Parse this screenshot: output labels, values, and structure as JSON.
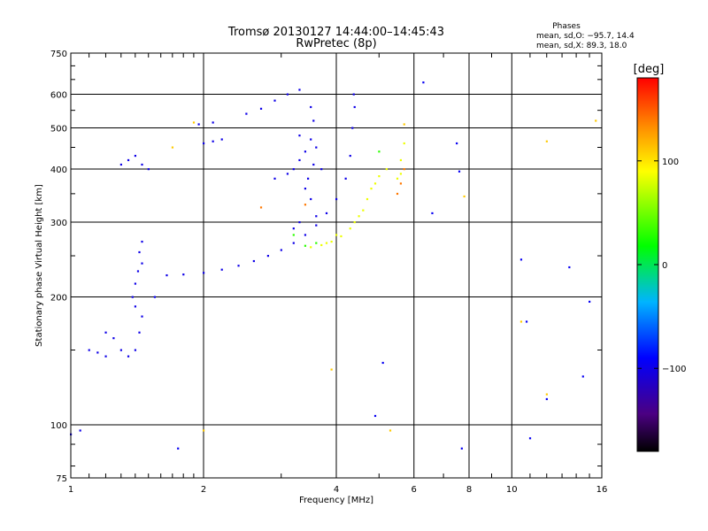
{
  "chart_data": {
    "type": "scatter",
    "title": "Tromsø 20130127 14:44:00–14:45:43",
    "subtitle": "RwPretec (8p)",
    "xlabel": "Frequency [MHz]",
    "ylabel": "Stationary phase Virtual Height [km]",
    "x_scale": "log",
    "y_scale": "log",
    "xlim": [
      1,
      16
    ],
    "ylim": [
      75,
      750
    ],
    "x_ticks": [
      1,
      2,
      4,
      6,
      8,
      10,
      16
    ],
    "x_tick_labels": [
      "1",
      "2",
      "4",
      "6",
      "8",
      "10",
      "16"
    ],
    "y_ticks": [
      75,
      100,
      200,
      300,
      400,
      500,
      600,
      750
    ],
    "y_tick_labels": [
      "75",
      "100",
      "200",
      "300",
      "400",
      "500",
      "600",
      "750"
    ],
    "grid": true,
    "stats": {
      "heading": "Phases",
      "line_o": "mean, sd,O: −95.7, 14.4",
      "line_x": "mean, sd,X:  89.3, 18.0"
    },
    "colorbar": {
      "label": "[deg]",
      "range": [
        -180,
        180
      ],
      "ticks": [
        100,
        0,
        -100
      ],
      "tick_labels": [
        "100",
        "0",
        "−100"
      ]
    },
    "traces": [
      {
        "name": "o-low",
        "phase": -100,
        "points": [
          [
            1.0,
            95
          ],
          [
            1.05,
            97
          ],
          [
            1.1,
            150
          ],
          [
            1.15,
            148
          ],
          [
            1.2,
            145
          ]
        ]
      },
      {
        "name": "blob-1.3",
        "phase": -100,
        "points": [
          [
            1.2,
            165
          ],
          [
            1.25,
            160
          ],
          [
            1.3,
            150
          ],
          [
            1.35,
            145
          ],
          [
            1.4,
            150
          ],
          [
            1.43,
            165
          ],
          [
            1.45,
            180
          ],
          [
            1.4,
            190
          ],
          [
            1.38,
            200
          ],
          [
            1.4,
            215
          ],
          [
            1.42,
            230
          ],
          [
            1.45,
            240
          ],
          [
            1.43,
            255
          ],
          [
            1.45,
            270
          ],
          [
            1.3,
            410
          ],
          [
            1.35,
            420
          ],
          [
            1.4,
            430
          ],
          [
            1.45,
            410
          ],
          [
            1.5,
            400
          ]
        ]
      },
      {
        "name": "f1-trace",
        "phase": -100,
        "points": [
          [
            1.65,
            225
          ],
          [
            1.8,
            226
          ],
          [
            2.0,
            228
          ],
          [
            2.2,
            232
          ],
          [
            2.4,
            237
          ],
          [
            2.6,
            243
          ],
          [
            2.8,
            250
          ],
          [
            3.0,
            258
          ],
          [
            3.2,
            268
          ],
          [
            3.4,
            280
          ],
          [
            3.6,
            295
          ],
          [
            3.8,
            315
          ],
          [
            4.0,
            340
          ],
          [
            4.2,
            380
          ],
          [
            4.3,
            430
          ],
          [
            4.35,
            500
          ],
          [
            4.4,
            560
          ],
          [
            4.38,
            600
          ]
        ]
      },
      {
        "name": "f2-spread",
        "phase": -100,
        "points": [
          [
            2.0,
            460
          ],
          [
            2.1,
            465
          ],
          [
            2.2,
            470
          ],
          [
            1.95,
            510
          ],
          [
            2.1,
            515
          ],
          [
            2.5,
            540
          ],
          [
            2.7,
            555
          ],
          [
            2.9,
            580
          ],
          [
            3.1,
            600
          ],
          [
            3.3,
            615
          ],
          [
            2.9,
            380
          ],
          [
            3.1,
            390
          ],
          [
            3.2,
            400
          ],
          [
            3.3,
            420
          ],
          [
            3.4,
            440
          ],
          [
            3.5,
            470
          ],
          [
            3.55,
            520
          ],
          [
            3.5,
            560
          ],
          [
            3.3,
            480
          ],
          [
            3.4,
            360
          ],
          [
            3.5,
            340
          ],
          [
            3.6,
            310
          ],
          [
            3.45,
            380
          ],
          [
            3.55,
            410
          ],
          [
            3.3,
            300
          ],
          [
            3.2,
            290
          ],
          [
            3.6,
            450
          ],
          [
            3.7,
            400
          ]
        ]
      },
      {
        "name": "x-trace",
        "phase": 85,
        "points": [
          [
            3.5,
            262
          ],
          [
            3.7,
            265
          ],
          [
            3.9,
            270
          ],
          [
            4.1,
            278
          ],
          [
            4.3,
            290
          ],
          [
            4.5,
            310
          ],
          [
            4.7,
            340
          ],
          [
            4.9,
            370
          ],
          [
            5.0,
            385
          ],
          [
            5.2,
            400
          ],
          [
            4.4,
            300
          ],
          [
            4.6,
            320
          ],
          [
            4.8,
            360
          ],
          [
            5.5,
            380
          ],
          [
            5.6,
            420
          ],
          [
            5.7,
            460
          ],
          [
            5.6,
            390
          ],
          [
            4.0,
            280
          ],
          [
            3.8,
            268
          ]
        ]
      },
      {
        "name": "x-green",
        "phase": 30,
        "points": [
          [
            3.4,
            264
          ],
          [
            3.6,
            268
          ],
          [
            5.0,
            440
          ],
          [
            3.2,
            280
          ]
        ]
      },
      {
        "name": "x-orange",
        "phase": 140,
        "points": [
          [
            5.5,
            350
          ],
          [
            5.6,
            370
          ],
          [
            5.7,
            400
          ],
          [
            3.4,
            330
          ],
          [
            2.7,
            325
          ]
        ]
      },
      {
        "name": "scattered",
        "phase": -95,
        "points": [
          [
            1.75,
            88
          ],
          [
            6.3,
            640
          ],
          [
            6.6,
            315
          ],
          [
            7.5,
            460
          ],
          [
            7.6,
            395
          ],
          [
            7.7,
            88
          ],
          [
            10.5,
            245
          ],
          [
            10.8,
            175
          ],
          [
            12,
            115
          ],
          [
            11,
            93
          ],
          [
            13.5,
            235
          ],
          [
            14.5,
            130
          ],
          [
            15,
            195
          ],
          [
            5.1,
            140
          ],
          [
            4.9,
            105
          ],
          [
            1.55,
            200
          ]
        ]
      },
      {
        "name": "scattered-warm",
        "phase": 110,
        "points": [
          [
            1.9,
            515
          ],
          [
            2.0,
            97
          ],
          [
            3.9,
            135
          ],
          [
            5.3,
            97
          ],
          [
            10.5,
            175
          ],
          [
            12,
            465
          ],
          [
            12,
            118
          ],
          [
            15.5,
            520
          ],
          [
            7.8,
            345
          ],
          [
            1.7,
            450
          ],
          [
            5.7,
            510
          ]
        ]
      }
    ]
  }
}
